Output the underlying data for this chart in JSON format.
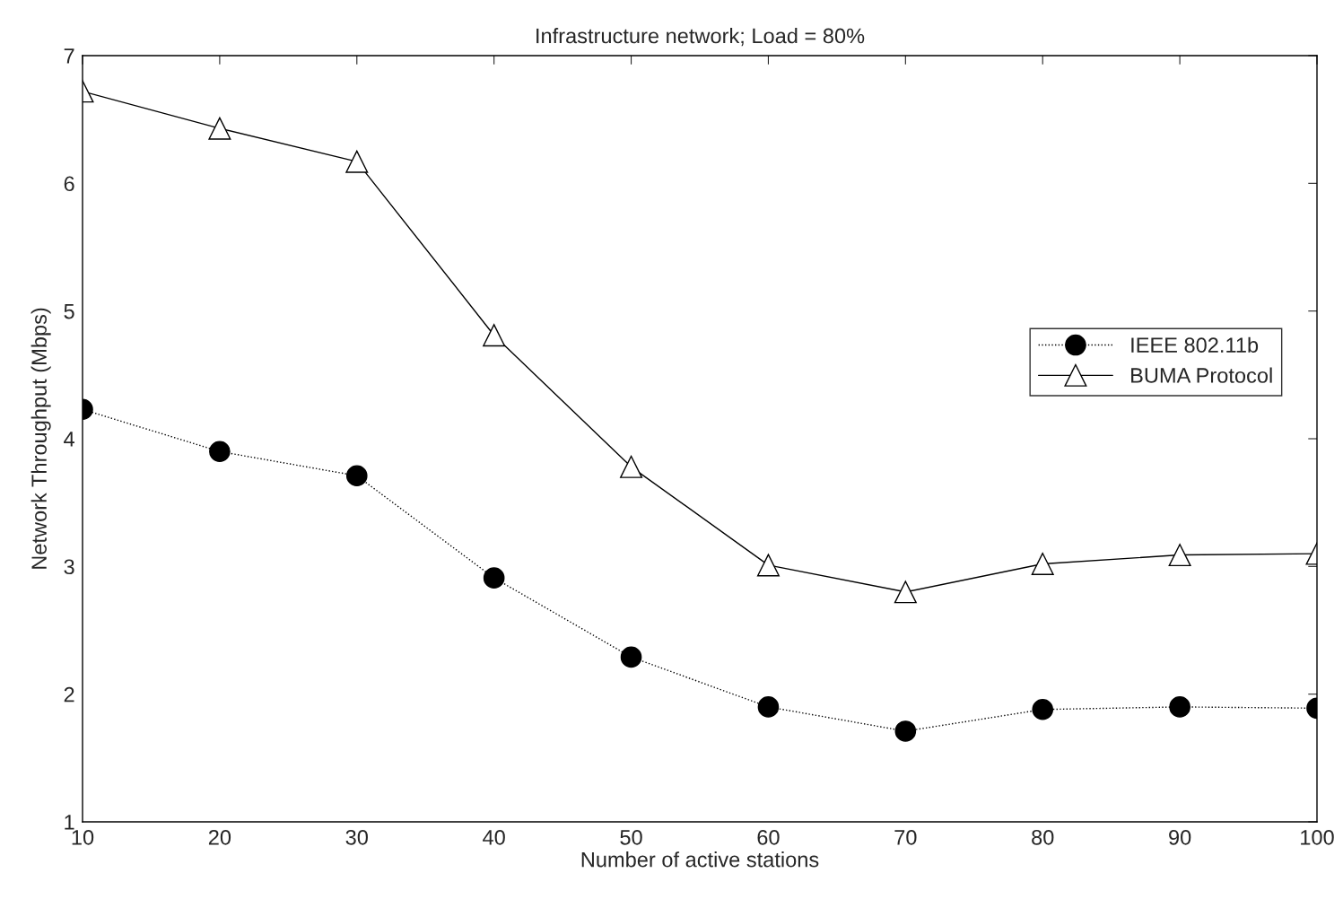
{
  "chart_data": {
    "type": "line",
    "title": "Infrastructure network; Load = 80%",
    "xlabel": "Number of active stations",
    "ylabel": "Network Throughput (Mbps)",
    "x": [
      10,
      20,
      30,
      40,
      50,
      60,
      70,
      80,
      90,
      100
    ],
    "series": [
      {
        "name": "IEEE 802.11b",
        "color": "#000000",
        "marker": "circle",
        "line_style": "dotted",
        "values": [
          4.23,
          3.9,
          3.71,
          2.91,
          2.29,
          1.9,
          1.71,
          1.88,
          1.9,
          1.89
        ]
      },
      {
        "name": "BUMA Protocol",
        "color": "#000000",
        "marker": "triangle",
        "line_style": "solid",
        "values": [
          6.72,
          6.43,
          6.17,
          4.81,
          3.78,
          3.01,
          2.8,
          3.02,
          3.09,
          3.1
        ]
      }
    ],
    "xlim": [
      10,
      100
    ],
    "xticks": [
      10,
      20,
      30,
      40,
      50,
      60,
      70,
      80,
      90,
      100
    ],
    "ylim": [
      1,
      7
    ],
    "yticks": [
      1,
      2,
      3,
      4,
      5,
      6,
      7
    ],
    "grid": false,
    "legend": "right"
  }
}
